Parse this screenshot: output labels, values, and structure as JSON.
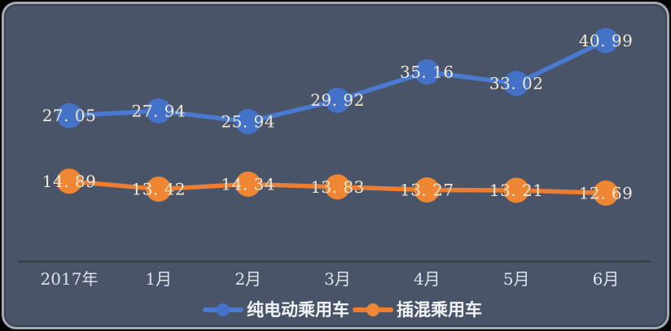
{
  "chart_data": {
    "type": "line",
    "categories": [
      "2017年",
      "1月",
      "2月",
      "3月",
      "4月",
      "5月",
      "6月"
    ],
    "series": [
      {
        "name": "纯电动乘用车",
        "values": [
          27.05,
          27.94,
          25.94,
          29.92,
          35.16,
          33.02,
          40.99
        ],
        "point_labels": [
          "27. 05",
          "27. 94",
          "25. 94",
          "29. 92",
          "35. 16",
          "33. 02",
          "40. 99"
        ],
        "line_color": "#4a79d2",
        "marker_color": "#4472c8"
      },
      {
        "name": "插混乘用车",
        "values": [
          14.89,
          13.42,
          14.34,
          13.83,
          13.27,
          13.21,
          12.69
        ],
        "point_labels": [
          "14. 89",
          "13. 42",
          "14. 34",
          "13. 83",
          "13. 27",
          "13. 21",
          "12. 69"
        ],
        "line_color": "#ed7d31",
        "marker_color": "#ef8633"
      }
    ],
    "ylim": [
      0,
      45
    ],
    "grid": false,
    "markers": "circle",
    "data_labels": "centered-on-marker",
    "legend_position": "bottom"
  },
  "legend": {
    "items": [
      {
        "label": "纯电动乘用车",
        "color": "#4a79d2",
        "marker_color": "#4472c8"
      },
      {
        "label": "插混乘用车",
        "color": "#ed7d31",
        "marker_color": "#ef8633"
      }
    ]
  },
  "colors": {
    "background": "#4a5468",
    "outer_background": "#000000",
    "card_border": "#a2a8b2",
    "axis_line": "#34373e",
    "axis_label_text": "#dfe3ea",
    "data_label_text": "#f2ead8",
    "legend_text": "#f2f4f7"
  }
}
